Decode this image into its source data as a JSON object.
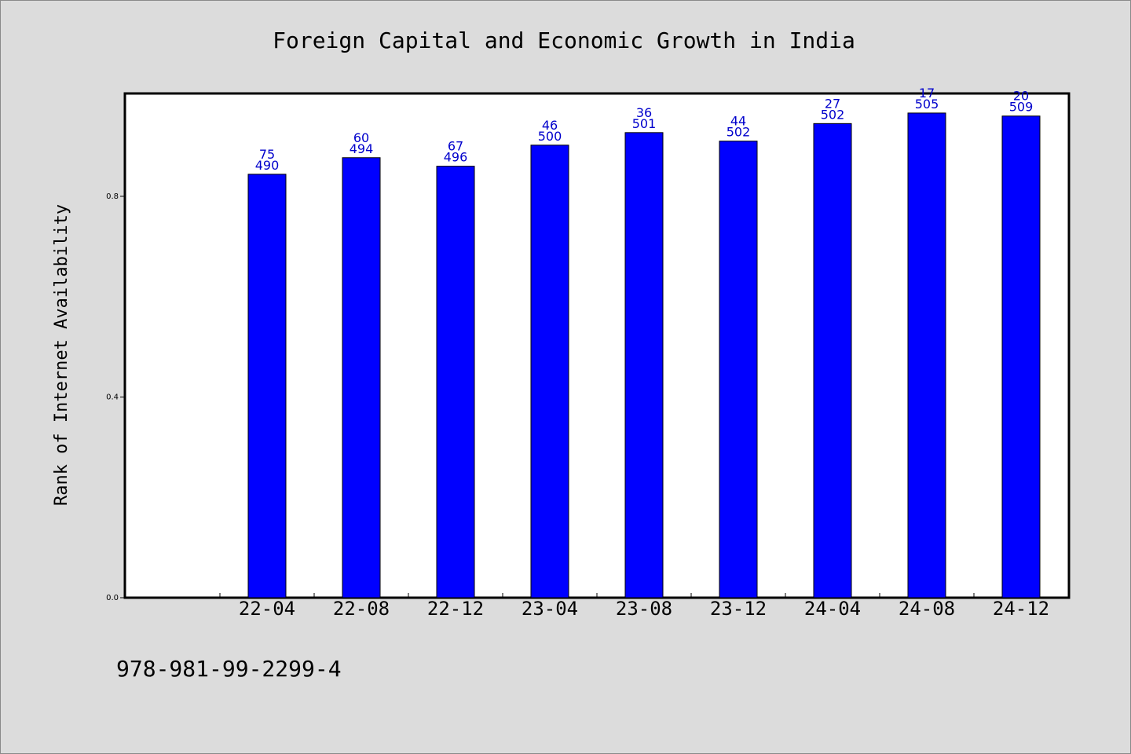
{
  "chart_data": {
    "type": "bar",
    "title": "Foreign Capital and Economic Growth in India",
    "xlabel": "",
    "ylabel": "Rank of Internet Availability",
    "categories": [
      "22-04",
      "22-08",
      "22-12",
      "23-04",
      "23-08",
      "23-12",
      "24-04",
      "24-08",
      "24-12"
    ],
    "series": [
      {
        "values": [
          0.844,
          0.877,
          0.86,
          0.902,
          0.927,
          0.91,
          0.945,
          0.966,
          0.96
        ],
        "labels_top": [
          "75",
          "60",
          "67",
          "46",
          "36",
          "44",
          "27",
          "17",
          "20"
        ],
        "labels_bottom": [
          "490",
          "494",
          "496",
          "500",
          "501",
          "502",
          "502",
          "505",
          "509"
        ]
      }
    ],
    "yticks": [
      "0.0",
      "0.4",
      "0.8"
    ],
    "ytick_values": [
      0.0,
      0.4,
      0.8
    ],
    "ylim": [
      0,
      1.005
    ],
    "grid": false,
    "legend": "none",
    "colors": {
      "bar": "#0000ff",
      "label": "#0000cc",
      "plot_bg": "#ffffff",
      "page_bg": "#dcdcdc"
    }
  },
  "footer": {
    "isbn": "978-981-99-2299-4"
  }
}
